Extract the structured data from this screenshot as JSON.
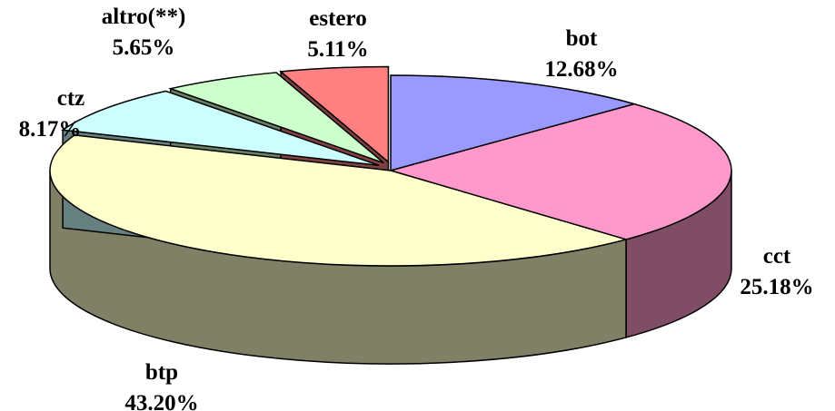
{
  "chart_data": {
    "type": "pie3d",
    "categories": [
      "bot",
      "cct",
      "btp",
      "ctz",
      "altro(**)",
      "estero"
    ],
    "values": [
      12.68,
      25.18,
      43.2,
      8.17,
      5.65,
      5.11
    ],
    "value_labels": [
      "12.68%",
      "25.18%",
      "43.20%",
      "8.17%",
      "5.65%",
      "5.11%"
    ],
    "colors": [
      "#9999ff",
      "#ff99cc",
      "#ffffcc",
      "#ccffff",
      "#ccffcc",
      "#ff8080"
    ],
    "exploded": [
      false,
      false,
      false,
      true,
      true,
      true
    ]
  }
}
